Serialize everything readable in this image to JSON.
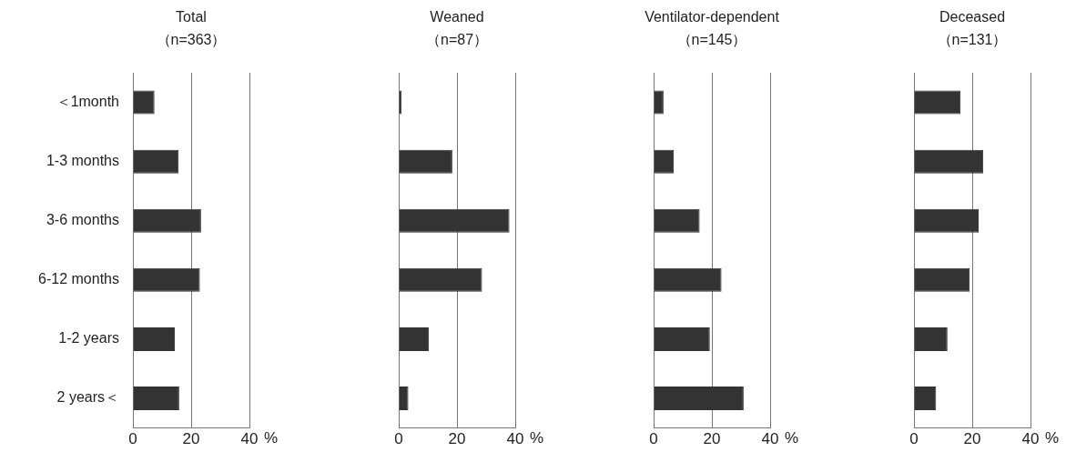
{
  "chart_data": [
    {
      "type": "bar",
      "orientation": "horizontal",
      "title": "Total",
      "subtitle": "（n=363）",
      "xlabel": "%",
      "categories": [
        "＜1month",
        "1-3 months",
        "3-6 months",
        "6-12 months",
        "1-2 years",
        "2 years＜"
      ],
      "values": [
        7.4,
        15.7,
        23.4,
        23.0,
        14.4,
        15.9
      ],
      "color": "#333333",
      "xlim": [
        0,
        40
      ],
      "xticks": [
        0,
        20,
        40
      ],
      "grid": "x"
    },
    {
      "type": "bar",
      "orientation": "horizontal",
      "title": "Weaned",
      "subtitle": "（n=87）",
      "xlabel": "%",
      "categories": [
        null,
        null,
        null,
        null,
        null,
        null
      ],
      "values": [
        1.0,
        18.4,
        38.0,
        28.6,
        10.3,
        3.3
      ],
      "color": "#333333",
      "xlim": [
        0,
        40
      ],
      "xticks": [
        0,
        20,
        40
      ],
      "grid": "x",
      "tick_labels": "x"
    },
    {
      "type": "bar",
      "orientation": "horizontal",
      "title": "Ventilator-dependent",
      "subtitle": "（n=145）",
      "xlabel": "%",
      "categories": [
        null,
        null,
        null,
        null,
        null,
        null
      ],
      "values": [
        3.4,
        6.9,
        15.8,
        23.3,
        19.3,
        30.9
      ],
      "color": "#333333",
      "xlim": [
        0,
        40
      ],
      "xticks": [
        0,
        20,
        40
      ],
      "grid": "x",
      "tick_labels": "x"
    },
    {
      "type": "bar",
      "orientation": "horizontal",
      "title": "Deceased",
      "subtitle": "（n=131）",
      "xlabel": "%",
      "categories": [
        null,
        null,
        null,
        null,
        null,
        null
      ],
      "values": [
        16.0,
        23.8,
        22.2,
        19.1,
        11.5,
        7.6
      ],
      "color": "#333333",
      "xlim": [
        0,
        40
      ],
      "xticks": [
        0,
        20,
        40
      ],
      "grid": "x",
      "tick_labels": "x"
    }
  ]
}
